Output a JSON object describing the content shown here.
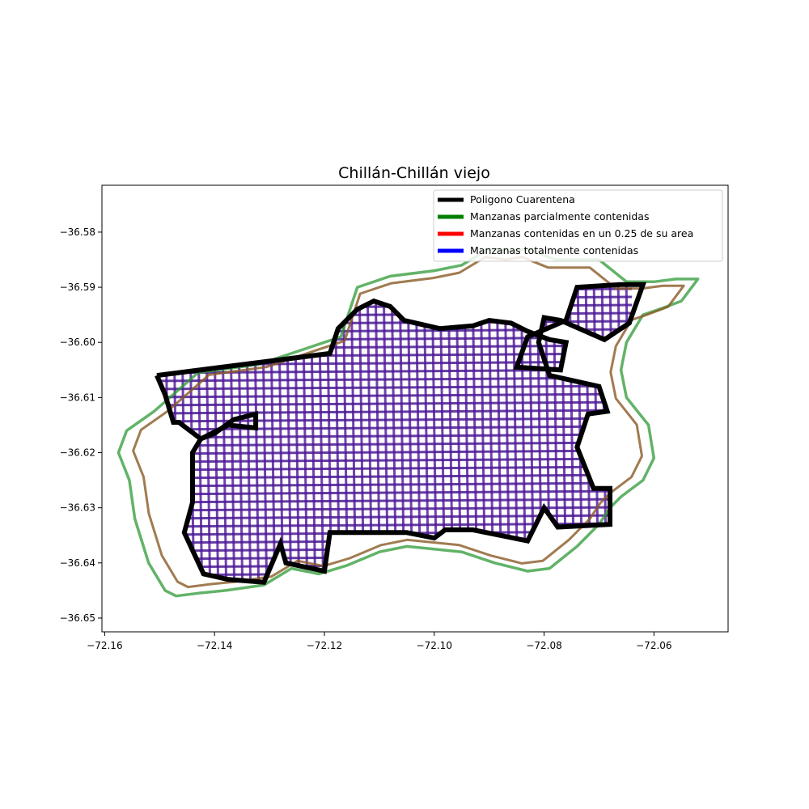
{
  "chart_data": {
    "type": "map",
    "title": "Chillán-Chillán viejo",
    "xlim": [
      -72.1605,
      -72.0465
    ],
    "ylim": [
      -36.6525,
      -36.5715
    ],
    "x_ticks": [
      {
        "value": -72.16,
        "label": "−72.16"
      },
      {
        "value": -72.14,
        "label": "−72.14"
      },
      {
        "value": -72.12,
        "label": "−72.12"
      },
      {
        "value": -72.1,
        "label": "−72.10"
      },
      {
        "value": -72.08,
        "label": "−72.08"
      },
      {
        "value": -72.06,
        "label": "−72.06"
      }
    ],
    "y_ticks": [
      {
        "value": -36.58,
        "label": "−36.58"
      },
      {
        "value": -36.59,
        "label": "−36.59"
      },
      {
        "value": -36.6,
        "label": "−36.60"
      },
      {
        "value": -36.61,
        "label": "−36.61"
      },
      {
        "value": -36.62,
        "label": "−36.62"
      },
      {
        "value": -36.63,
        "label": "−36.63"
      },
      {
        "value": -36.64,
        "label": "−36.64"
      },
      {
        "value": -36.65,
        "label": "−36.65"
      }
    ],
    "legend_position": "upper right",
    "legend": [
      {
        "label": "Poligono Cuarentena",
        "color": "#000000"
      },
      {
        "label": "Manzanas parcialmente contenidas",
        "color": "#008000"
      },
      {
        "label": "Manzanas contenidas en un 0.25 de su area",
        "color": "#ff0000"
      },
      {
        "label": "Manzanas totalmente contenidas",
        "color": "#0000ff"
      }
    ],
    "series": [
      {
        "name": "Poligono Cuarentena",
        "color": "#000000",
        "points": [
          [
            -72.1505,
            -36.606
          ],
          [
            -72.119,
            -36.602
          ],
          [
            -72.1175,
            -36.5975
          ],
          [
            -72.114,
            -36.594
          ],
          [
            -72.111,
            -36.5925
          ],
          [
            -72.108,
            -36.5935
          ],
          [
            -72.1055,
            -36.596
          ],
          [
            -72.099,
            -36.5975
          ],
          [
            -72.093,
            -36.597
          ],
          [
            -72.09,
            -36.596
          ],
          [
            -72.086,
            -36.5965
          ],
          [
            -72.083,
            -36.598
          ],
          [
            -72.079,
            -36.5995
          ],
          [
            -72.076,
            -36.6
          ],
          [
            -72.077,
            -36.605
          ],
          [
            -72.085,
            -36.6045
          ],
          [
            -72.083,
            -36.599
          ],
          [
            -72.076,
            -36.596
          ],
          [
            -72.074,
            -36.59
          ],
          [
            -72.066,
            -36.5895
          ],
          [
            -72.062,
            -36.5895
          ],
          [
            -72.0645,
            -36.5965
          ],
          [
            -72.069,
            -36.5995
          ],
          [
            -72.077,
            -36.596
          ],
          [
            -72.08,
            -36.5955
          ],
          [
            -72.081,
            -36.6
          ],
          [
            -72.079,
            -36.606
          ],
          [
            -72.07,
            -36.608
          ],
          [
            -72.0685,
            -36.6125
          ],
          [
            -72.072,
            -36.613
          ],
          [
            -72.074,
            -36.619
          ],
          [
            -72.071,
            -36.6265
          ],
          [
            -72.068,
            -36.6265
          ],
          [
            -72.068,
            -36.633
          ],
          [
            -72.0775,
            -36.6335
          ],
          [
            -72.08,
            -36.63
          ],
          [
            -72.083,
            -36.636
          ],
          [
            -72.093,
            -36.634
          ],
          [
            -72.098,
            -36.634
          ],
          [
            -72.1,
            -36.6355
          ],
          [
            -72.105,
            -36.6345
          ],
          [
            -72.119,
            -36.6345
          ],
          [
            -72.12,
            -36.6415
          ],
          [
            -72.127,
            -36.64
          ],
          [
            -72.128,
            -36.6365
          ],
          [
            -72.131,
            -36.6435
          ],
          [
            -72.1375,
            -36.643
          ],
          [
            -72.142,
            -36.642
          ],
          [
            -72.1455,
            -36.6345
          ],
          [
            -72.144,
            -36.629
          ],
          [
            -72.144,
            -36.62
          ],
          [
            -72.1425,
            -36.6175
          ],
          [
            -72.14,
            -36.6165
          ],
          [
            -72.1365,
            -36.614
          ],
          [
            -72.1325,
            -36.613
          ],
          [
            -72.1325,
            -36.6155
          ],
          [
            -72.1375,
            -36.615
          ],
          [
            -72.1425,
            -36.6175
          ],
          [
            -72.1465,
            -36.6145
          ],
          [
            -72.1475,
            -36.6145
          ],
          [
            -72.149,
            -36.6095
          ],
          [
            -72.1505,
            -36.606
          ]
        ]
      },
      {
        "name": "Manzanas parcialmente contenidas",
        "color": "#008000",
        "points": [
          [
            -72.151,
            -36.6125
          ],
          [
            -72.143,
            -36.6055
          ],
          [
            -72.132,
            -36.604
          ],
          [
            -72.123,
            -36.601
          ],
          [
            -72.117,
            -36.599
          ],
          [
            -72.114,
            -36.59
          ],
          [
            -72.108,
            -36.588
          ],
          [
            -72.1,
            -36.587
          ],
          [
            -72.095,
            -36.586
          ],
          [
            -72.09,
            -36.583
          ],
          [
            -72.086,
            -36.5835
          ],
          [
            -72.083,
            -36.583
          ],
          [
            -72.078,
            -36.585
          ],
          [
            -72.074,
            -36.585
          ],
          [
            -72.07,
            -36.585
          ],
          [
            -72.065,
            -36.589
          ],
          [
            -72.06,
            -36.589
          ],
          [
            -72.056,
            -36.5885
          ],
          [
            -72.052,
            -36.5885
          ],
          [
            -72.055,
            -36.5925
          ],
          [
            -72.059,
            -36.594
          ],
          [
            -72.062,
            -36.595
          ],
          [
            -72.065,
            -36.6
          ],
          [
            -72.066,
            -36.605
          ],
          [
            -72.065,
            -36.61
          ],
          [
            -72.061,
            -36.615
          ],
          [
            -72.06,
            -36.621
          ],
          [
            -72.062,
            -36.625
          ],
          [
            -72.066,
            -36.628
          ],
          [
            -72.068,
            -36.63
          ],
          [
            -72.07,
            -36.633
          ],
          [
            -72.074,
            -36.637
          ],
          [
            -72.079,
            -36.641
          ],
          [
            -72.083,
            -36.6415
          ],
          [
            -72.089,
            -36.64
          ],
          [
            -72.095,
            -36.638
          ],
          [
            -72.1,
            -36.6375
          ],
          [
            -72.105,
            -36.637
          ],
          [
            -72.11,
            -36.638
          ],
          [
            -72.116,
            -36.6405
          ],
          [
            -72.121,
            -36.642
          ],
          [
            -72.126,
            -36.641
          ],
          [
            -72.131,
            -36.644
          ],
          [
            -72.138,
            -36.645
          ],
          [
            -72.143,
            -36.6455
          ],
          [
            -72.147,
            -36.646
          ],
          [
            -72.149,
            -36.645
          ],
          [
            -72.152,
            -36.64
          ],
          [
            -72.1545,
            -36.632
          ],
          [
            -72.1555,
            -36.625
          ],
          [
            -72.1575,
            -36.62
          ],
          [
            -72.156,
            -36.616
          ],
          [
            -72.151,
            -36.6125
          ]
        ]
      }
    ]
  }
}
